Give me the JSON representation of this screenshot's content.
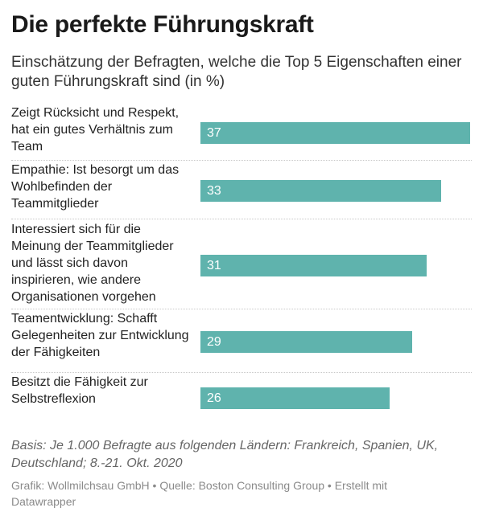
{
  "title": "Die perfekte Führungskraft",
  "subtitle": "Einschätzung der Befragten, welche die Top 5 Eigenschaften einer guten Führungskraft sind (in %)",
  "notes": "Basis: Je 1.000 Befragte aus folgenden Ländern: Frankreich, Spanien, UK, Deutschland; 8.-21. Okt. 2020",
  "footer": "Grafik: Wollmilchsau GmbH • Quelle: Boston Consulting Group • Erstellt mit Datawrapper",
  "colors": {
    "bar": "#5fb3ad"
  },
  "chart_data": {
    "type": "bar",
    "orientation": "horizontal",
    "categories": [
      "Zeigt Rücksicht und Respekt, hat ein gutes Verhältnis zum Team",
      "Empathie: Ist besorgt um das Wohlbefinden der Teammitglieder",
      "Interessiert sich für die Meinung der Teammitglieder und lässt sich davon inspirieren, wie andere Organisationen vorgehen",
      "Teamentwicklung: Schafft Gelegenheiten zur Entwicklung der Fähigkeiten",
      "Besitzt die Fähigkeit zur Selbstreflexion"
    ],
    "values": [
      37,
      33,
      31,
      29,
      26
    ],
    "data_labels": [
      "37",
      "33",
      "31",
      "29",
      "26"
    ],
    "xlim": [
      0,
      37
    ],
    "grid": false,
    "legend": "none"
  }
}
